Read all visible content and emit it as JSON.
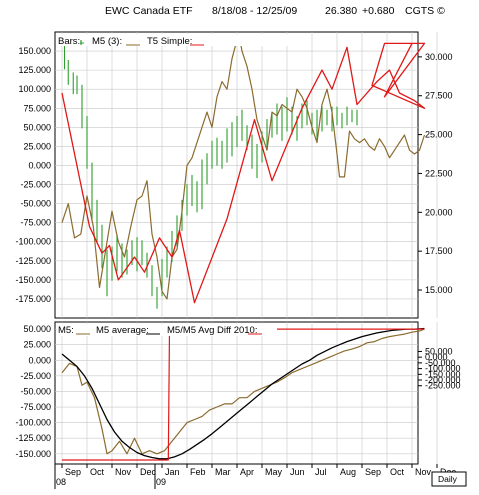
{
  "header": {
    "symbol": "EWC",
    "name": "Canada ETF",
    "date_range": "8/18/08 - 12/25/09",
    "last": "26.380",
    "change": "+0.680",
    "source": "CGTS ©"
  },
  "upper_legend": {
    "bars": "Bars:",
    "m5": "M5 (3):",
    "t5": "T5 Simple:"
  },
  "lower_legend": {
    "m5": "M5:",
    "m5avg": "M5 average:",
    "diff": "M5/M5 Avg Diff 2010:"
  },
  "footer": {
    "year1": "08",
    "year2": "09",
    "period": "Daily"
  },
  "colors": {
    "price": "#2e9e2e",
    "m5": "#8b6b2e",
    "t5": "#e01818",
    "avg": "#000000",
    "grid": "#c8c8c8"
  },
  "chart_data": [
    {
      "type": "line",
      "name": "upper-panel",
      "x_labels": [
        "Sep",
        "Oct",
        "Nov",
        "Dec",
        "Jan",
        "Feb",
        "Mar",
        "Apr",
        "May",
        "Jun",
        "Jul",
        "Aug",
        "Sep",
        "Oct",
        "Nov",
        "Dec"
      ],
      "left_ylim": [
        -200,
        175
      ],
      "left_ticks": [
        "150.000",
        "125.000",
        "100.000",
        "75.000",
        "50.000",
        "25.000",
        "0.000",
        "-25.000",
        "-50.000",
        "-75.000",
        "-100.000",
        "-125.000",
        "-150.000",
        "-175.000"
      ],
      "left_tick_values": [
        150,
        125,
        100,
        75,
        50,
        25,
        0,
        -25,
        -50,
        -75,
        -100,
        -125,
        -150,
        -175
      ],
      "right_ticks": [
        "30.000",
        "27.500",
        "25.000",
        "22.500",
        "20.000",
        "17.500",
        "15.000"
      ],
      "right_tick_values": [
        30,
        27.5,
        25,
        22.5,
        20,
        17.5,
        15
      ],
      "price_ylim": [
        13.2,
        31.6
      ],
      "price_bars": [
        [
          0.1,
          29.2,
          31.2
        ],
        [
          0.25,
          28.2,
          29.8
        ],
        [
          0.45,
          27.6,
          29.0
        ],
        [
          0.6,
          27.6,
          28.8
        ],
        [
          0.8,
          25.4,
          28.2
        ],
        [
          1.0,
          22.8,
          26.2
        ],
        [
          1.2,
          19.4,
          23.2
        ],
        [
          1.4,
          18.0,
          20.8
        ],
        [
          1.6,
          16.4,
          19.2
        ],
        [
          1.8,
          14.6,
          17.6
        ],
        [
          2.0,
          15.6,
          17.8
        ],
        [
          2.2,
          16.2,
          18.6
        ],
        [
          2.4,
          15.8,
          18.0
        ],
        [
          2.6,
          16.0,
          17.6
        ],
        [
          2.8,
          16.6,
          18.2
        ],
        [
          3.0,
          16.2,
          18.4
        ],
        [
          3.2,
          16.6,
          18.2
        ],
        [
          3.4,
          15.8,
          17.4
        ],
        [
          3.6,
          14.6,
          16.6
        ],
        [
          3.8,
          13.8,
          15.2
        ],
        [
          4.0,
          14.6,
          17.0
        ],
        [
          4.2,
          15.8,
          17.8
        ],
        [
          4.4,
          16.8,
          18.8
        ],
        [
          4.6,
          17.8,
          19.8
        ],
        [
          4.8,
          18.8,
          20.8
        ],
        [
          5.0,
          19.8,
          21.8
        ],
        [
          5.2,
          20.4,
          22.4
        ],
        [
          5.4,
          20.0,
          22.0
        ],
        [
          5.6,
          20.2,
          23.4
        ],
        [
          5.8,
          21.8,
          23.8
        ],
        [
          6.0,
          22.8,
          24.6
        ],
        [
          6.2,
          23.0,
          24.8
        ],
        [
          6.4,
          22.8,
          24.6
        ],
        [
          6.6,
          23.2,
          25.4
        ],
        [
          6.8,
          23.6,
          25.8
        ],
        [
          7.0,
          24.2,
          26.2
        ],
        [
          7.2,
          24.6,
          26.6
        ],
        [
          7.4,
          24.0,
          25.6
        ],
        [
          7.6,
          22.8,
          25.0
        ],
        [
          7.8,
          22.2,
          24.4
        ],
        [
          8.0,
          23.2,
          25.2
        ],
        [
          8.2,
          24.2,
          26.0
        ],
        [
          8.4,
          24.8,
          26.4
        ],
        [
          8.6,
          25.0,
          27.0
        ],
        [
          8.8,
          24.6,
          26.8
        ],
        [
          9.0,
          25.2,
          27.4
        ],
        [
          9.2,
          25.0,
          26.8
        ],
        [
          9.4,
          24.6,
          26.2
        ],
        [
          9.6,
          25.4,
          27.0
        ],
        [
          9.8,
          25.6,
          27.2
        ],
        [
          10.0,
          25.0,
          26.4
        ],
        [
          10.2,
          24.6,
          26.6
        ],
        [
          10.4,
          25.2,
          26.8
        ],
        [
          10.6,
          25.6,
          26.6
        ],
        [
          10.8,
          25.2,
          26.8
        ],
        [
          11.0,
          25.6,
          26.8
        ],
        [
          11.2,
          25.4,
          26.4
        ],
        [
          11.4,
          25.6,
          26.8
        ],
        [
          11.6,
          25.8,
          26.6
        ],
        [
          11.8,
          25.6,
          26.6
        ]
      ],
      "m5_line": [
        [
          0.0,
          -75
        ],
        [
          0.25,
          -50
        ],
        [
          0.5,
          -95
        ],
        [
          0.75,
          -90
        ],
        [
          1.0,
          -40
        ],
        [
          1.25,
          -80
        ],
        [
          1.5,
          -160
        ],
        [
          1.75,
          -110
        ],
        [
          2.0,
          -60
        ],
        [
          2.25,
          -100
        ],
        [
          2.5,
          -120
        ],
        [
          2.75,
          -80
        ],
        [
          3.0,
          -45
        ],
        [
          3.2,
          -40
        ],
        [
          3.4,
          -20
        ],
        [
          3.6,
          -90
        ],
        [
          3.8,
          -120
        ],
        [
          4.0,
          -165
        ],
        [
          4.2,
          -175
        ],
        [
          4.4,
          -120
        ],
        [
          4.6,
          -110
        ],
        [
          4.8,
          -60
        ],
        [
          5.0,
          0
        ],
        [
          5.2,
          10
        ],
        [
          5.4,
          30
        ],
        [
          5.6,
          50
        ],
        [
          5.8,
          70
        ],
        [
          6.0,
          50
        ],
        [
          6.2,
          90
        ],
        [
          6.4,
          110
        ],
        [
          6.6,
          100
        ],
        [
          6.8,
          140
        ],
        [
          7.0,
          165
        ],
        [
          7.1,
          168
        ],
        [
          7.2,
          150
        ],
        [
          7.4,
          130
        ],
        [
          7.6,
          100
        ],
        [
          7.8,
          60
        ],
        [
          8.0,
          40
        ],
        [
          8.2,
          20
        ],
        [
          8.4,
          70
        ],
        [
          8.6,
          65
        ],
        [
          8.8,
          80
        ],
        [
          9.0,
          75
        ],
        [
          9.2,
          70
        ],
        [
          9.4,
          100
        ],
        [
          9.6,
          90
        ],
        [
          9.8,
          75
        ],
        [
          10.0,
          50
        ],
        [
          10.2,
          30
        ],
        [
          10.4,
          80
        ],
        [
          10.6,
          100
        ],
        [
          10.8,
          70
        ],
        [
          11.0,
          15
        ],
        [
          11.1,
          -15
        ],
        [
          11.3,
          -15
        ],
        [
          11.5,
          45
        ],
        [
          11.7,
          35
        ],
        [
          11.9,
          30
        ],
        [
          12.1,
          35
        ],
        [
          12.3,
          25
        ],
        [
          12.5,
          20
        ],
        [
          12.7,
          35
        ],
        [
          12.9,
          25
        ],
        [
          13.1,
          10
        ],
        [
          13.3,
          20
        ],
        [
          13.5,
          30
        ],
        [
          13.7,
          40
        ],
        [
          13.9,
          20
        ],
        [
          14.1,
          15
        ],
        [
          14.3,
          20
        ],
        [
          14.5,
          40
        ]
      ],
      "t5_line": [
        [
          0.0,
          95
        ],
        [
          1.1,
          -80
        ],
        [
          1.6,
          -115
        ],
        [
          1.9,
          -105
        ],
        [
          2.25,
          -150
        ],
        [
          2.9,
          -120
        ],
        [
          3.3,
          -140
        ],
        [
          3.9,
          -95
        ],
        [
          4.4,
          -120
        ],
        [
          4.7,
          -85
        ],
        [
          5.3,
          -180
        ],
        [
          6.6,
          -70
        ],
        [
          7.7,
          60
        ],
        [
          8.4,
          -20
        ],
        [
          9.6,
          75
        ],
        [
          10.4,
          125
        ],
        [
          10.8,
          100
        ],
        [
          11.4,
          155
        ],
        [
          11.8,
          80
        ],
        [
          12.6,
          110
        ],
        [
          13.1,
          125
        ],
        [
          13.5,
          95
        ],
        [
          14.1,
          85
        ],
        [
          14.5,
          75
        ],
        [
          12.4,
          105
        ],
        [
          12.9,
          160
        ],
        [
          14.5,
          160
        ],
        [
          12.9,
          90
        ],
        [
          14.0,
          160
        ]
      ]
    },
    {
      "type": "line",
      "name": "lower-panel",
      "ylim": [
        -160,
        55
      ],
      "left_ticks": [
        "50.000",
        "25.000",
        "0.000",
        "-25.000",
        "-50.000",
        "-75.000",
        "-100.000",
        "-125.000",
        "-150.000"
      ],
      "left_tick_values": [
        50,
        25,
        0,
        -25,
        -50,
        -75,
        -100,
        -125,
        -150
      ],
      "right_ticks": [
        "50.000",
        "0.000",
        "-50.000",
        "-100.000",
        "-150.000",
        "-200.000",
        "-250.000"
      ],
      "right_tick_values": [
        50,
        0,
        -50,
        -100,
        -150,
        -200,
        -250
      ],
      "m5_line": [
        [
          0.0,
          -20
        ],
        [
          0.3,
          -5
        ],
        [
          0.6,
          -10
        ],
        [
          0.8,
          -40
        ],
        [
          1.0,
          -35
        ],
        [
          1.3,
          -60
        ],
        [
          1.6,
          -110
        ],
        [
          1.8,
          -150
        ],
        [
          2.0,
          -145
        ],
        [
          2.3,
          -130
        ],
        [
          2.6,
          -150
        ],
        [
          2.9,
          -125
        ],
        [
          3.2,
          -150
        ],
        [
          3.5,
          -145
        ],
        [
          3.8,
          -150
        ],
        [
          4.1,
          -145
        ],
        [
          4.4,
          -130
        ],
        [
          4.7,
          -115
        ],
        [
          5.0,
          -100
        ],
        [
          5.3,
          -95
        ],
        [
          5.6,
          -90
        ],
        [
          5.9,
          -80
        ],
        [
          6.2,
          -75
        ],
        [
          6.5,
          -70
        ],
        [
          6.8,
          -70
        ],
        [
          7.1,
          -60
        ],
        [
          7.4,
          -60
        ],
        [
          7.7,
          -50
        ],
        [
          8.0,
          -45
        ],
        [
          8.3,
          -40
        ],
        [
          8.6,
          -35
        ],
        [
          8.9,
          -28
        ],
        [
          9.2,
          -20
        ],
        [
          9.5,
          -15
        ],
        [
          9.8,
          -10
        ],
        [
          10.1,
          -5
        ],
        [
          10.4,
          0
        ],
        [
          10.7,
          5
        ],
        [
          11.0,
          10
        ],
        [
          11.3,
          15
        ],
        [
          11.6,
          18
        ],
        [
          11.9,
          22
        ],
        [
          12.2,
          28
        ],
        [
          12.5,
          30
        ],
        [
          12.8,
          35
        ],
        [
          13.1,
          38
        ],
        [
          13.4,
          40
        ],
        [
          13.7,
          42
        ],
        [
          14.0,
          45
        ],
        [
          14.3,
          47
        ],
        [
          14.5,
          50
        ]
      ],
      "avg_line": [
        [
          0.0,
          10
        ],
        [
          0.3,
          0
        ],
        [
          0.6,
          -10
        ],
        [
          0.9,
          -25
        ],
        [
          1.2,
          -45
        ],
        [
          1.5,
          -70
        ],
        [
          1.8,
          -95
        ],
        [
          2.1,
          -115
        ],
        [
          2.4,
          -130
        ],
        [
          2.7,
          -140
        ],
        [
          3.0,
          -148
        ],
        [
          3.3,
          -153
        ],
        [
          3.6,
          -156
        ],
        [
          3.9,
          -158
        ],
        [
          4.2,
          -158
        ],
        [
          4.5,
          -155
        ],
        [
          4.8,
          -150
        ],
        [
          5.1,
          -143
        ],
        [
          5.4,
          -135
        ],
        [
          5.7,
          -127
        ],
        [
          6.0,
          -118
        ],
        [
          6.3,
          -108
        ],
        [
          6.6,
          -98
        ],
        [
          6.9,
          -88
        ],
        [
          7.2,
          -78
        ],
        [
          7.5,
          -68
        ],
        [
          7.8,
          -58
        ],
        [
          8.1,
          -48
        ],
        [
          8.4,
          -38
        ],
        [
          8.7,
          -30
        ],
        [
          9.0,
          -22
        ],
        [
          9.3,
          -14
        ],
        [
          9.6,
          -6
        ],
        [
          9.9,
          0
        ],
        [
          10.2,
          8
        ],
        [
          10.5,
          14
        ],
        [
          10.8,
          20
        ],
        [
          11.1,
          25
        ],
        [
          11.4,
          30
        ],
        [
          11.7,
          34
        ],
        [
          12.0,
          38
        ],
        [
          12.3,
          41
        ],
        [
          12.6,
          44
        ],
        [
          12.9,
          46
        ],
        [
          13.2,
          48
        ],
        [
          13.5,
          49
        ],
        [
          13.8,
          50
        ],
        [
          14.1,
          50
        ],
        [
          14.5,
          51
        ]
      ],
      "diff_line": [
        [
          0.0,
          -160
        ],
        [
          4.25,
          -160
        ],
        [
          4.3,
          50
        ],
        [
          14.5,
          50
        ]
      ]
    }
  ]
}
